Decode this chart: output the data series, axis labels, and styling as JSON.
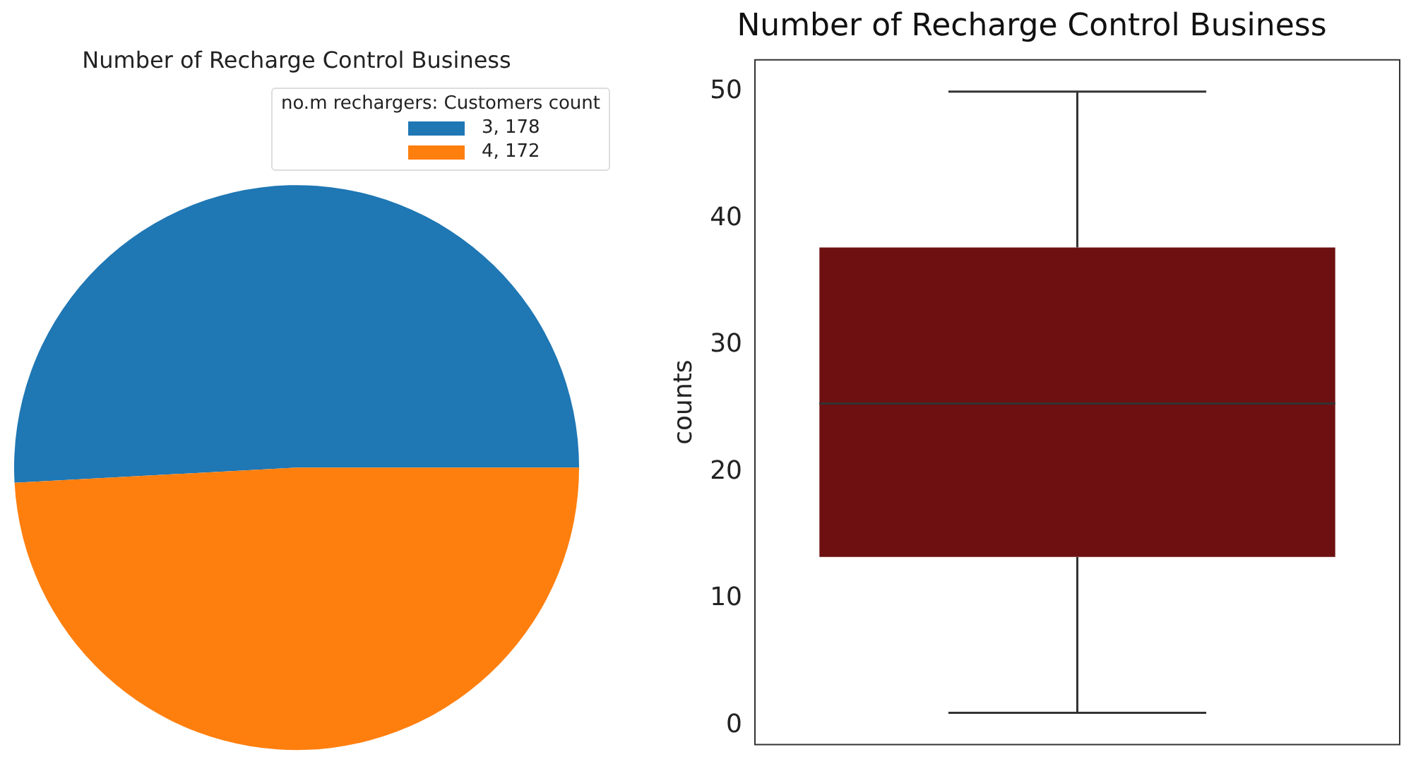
{
  "chart_data": [
    {
      "type": "pie",
      "title": "Number of Recharge Control Business",
      "legend_title": "no.m rechargers: Customers count",
      "categories": [
        "3, 178",
        "4, 172"
      ],
      "values": [
        178,
        172
      ],
      "colors": [
        "#1f77b4",
        "#ff7f0e"
      ],
      "legend": "top right"
    },
    {
      "type": "box",
      "title": "Number of Recharge Control Business",
      "ylabel": "counts",
      "categories": [
        null
      ],
      "boxes": [
        {
          "low": 1,
          "q1": 13.3,
          "median": 25.4,
          "q3": 37.7,
          "high": 50
        }
      ],
      "color": "#6e1011",
      "ylim": [
        -1.5,
        52.5
      ],
      "yticks": [
        0,
        10,
        20,
        30,
        40,
        50
      ],
      "tick_labels": "y"
    }
  ]
}
